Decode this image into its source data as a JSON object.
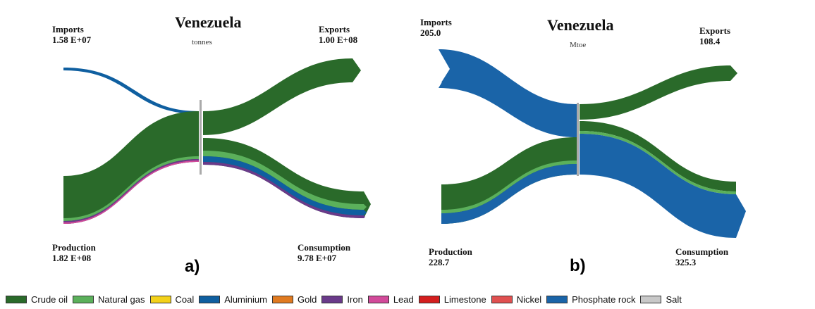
{
  "colors": {
    "crude_oil": "#2a6a2a",
    "natural_gas": "#5bb05b",
    "coal": "#f3d11a",
    "aluminium": "#0f5fa0",
    "gold": "#e07a20",
    "iron": "#6a3a8a",
    "lead": "#d24a9a",
    "limestone": "#d41e1e",
    "nickel": "#e05050",
    "phosphate_rock": "#1a64a8",
    "salt": "#c8c8c8",
    "divider": "#aaaaaa"
  },
  "panel_a": {
    "title": "Venezuela",
    "unit": "tonnes",
    "tag": "a)",
    "imports": {
      "label": "Imports",
      "value": "1.58 E+07"
    },
    "exports": {
      "label": "Exports",
      "value": "1.00 E+08"
    },
    "production": {
      "label": "Production",
      "value": "1.82 E+08"
    },
    "consumption": {
      "label": "Consumption",
      "value": "9.78 E+07"
    }
  },
  "panel_b": {
    "title": "Venezuela",
    "unit": "Mtoe",
    "tag": "b)",
    "imports": {
      "label": "Imports",
      "value": "205.0"
    },
    "exports": {
      "label": "Exports",
      "value": "108.4"
    },
    "production": {
      "label": "Production",
      "value": "228.7"
    },
    "consumption": {
      "label": "Consumption",
      "value": "325.3"
    }
  },
  "legend": [
    {
      "label": "Crude oil",
      "color": "#2a6a2a"
    },
    {
      "label": "Natural gas",
      "color": "#5bb05b"
    },
    {
      "label": "Coal",
      "color": "#f3d11a"
    },
    {
      "label": "Aluminium",
      "color": "#0f5fa0"
    },
    {
      "label": "Gold",
      "color": "#e07a20"
    },
    {
      "label": "Iron",
      "color": "#6a3a8a"
    },
    {
      "label": "Lead",
      "color": "#d24a9a"
    },
    {
      "label": "Limestone",
      "color": "#d41e1e"
    },
    {
      "label": "Nickel",
      "color": "#e05050"
    },
    {
      "label": "Phosphate rock",
      "color": "#1a64a8"
    },
    {
      "label": "Salt",
      "color": "#c8c8c8"
    }
  ]
}
